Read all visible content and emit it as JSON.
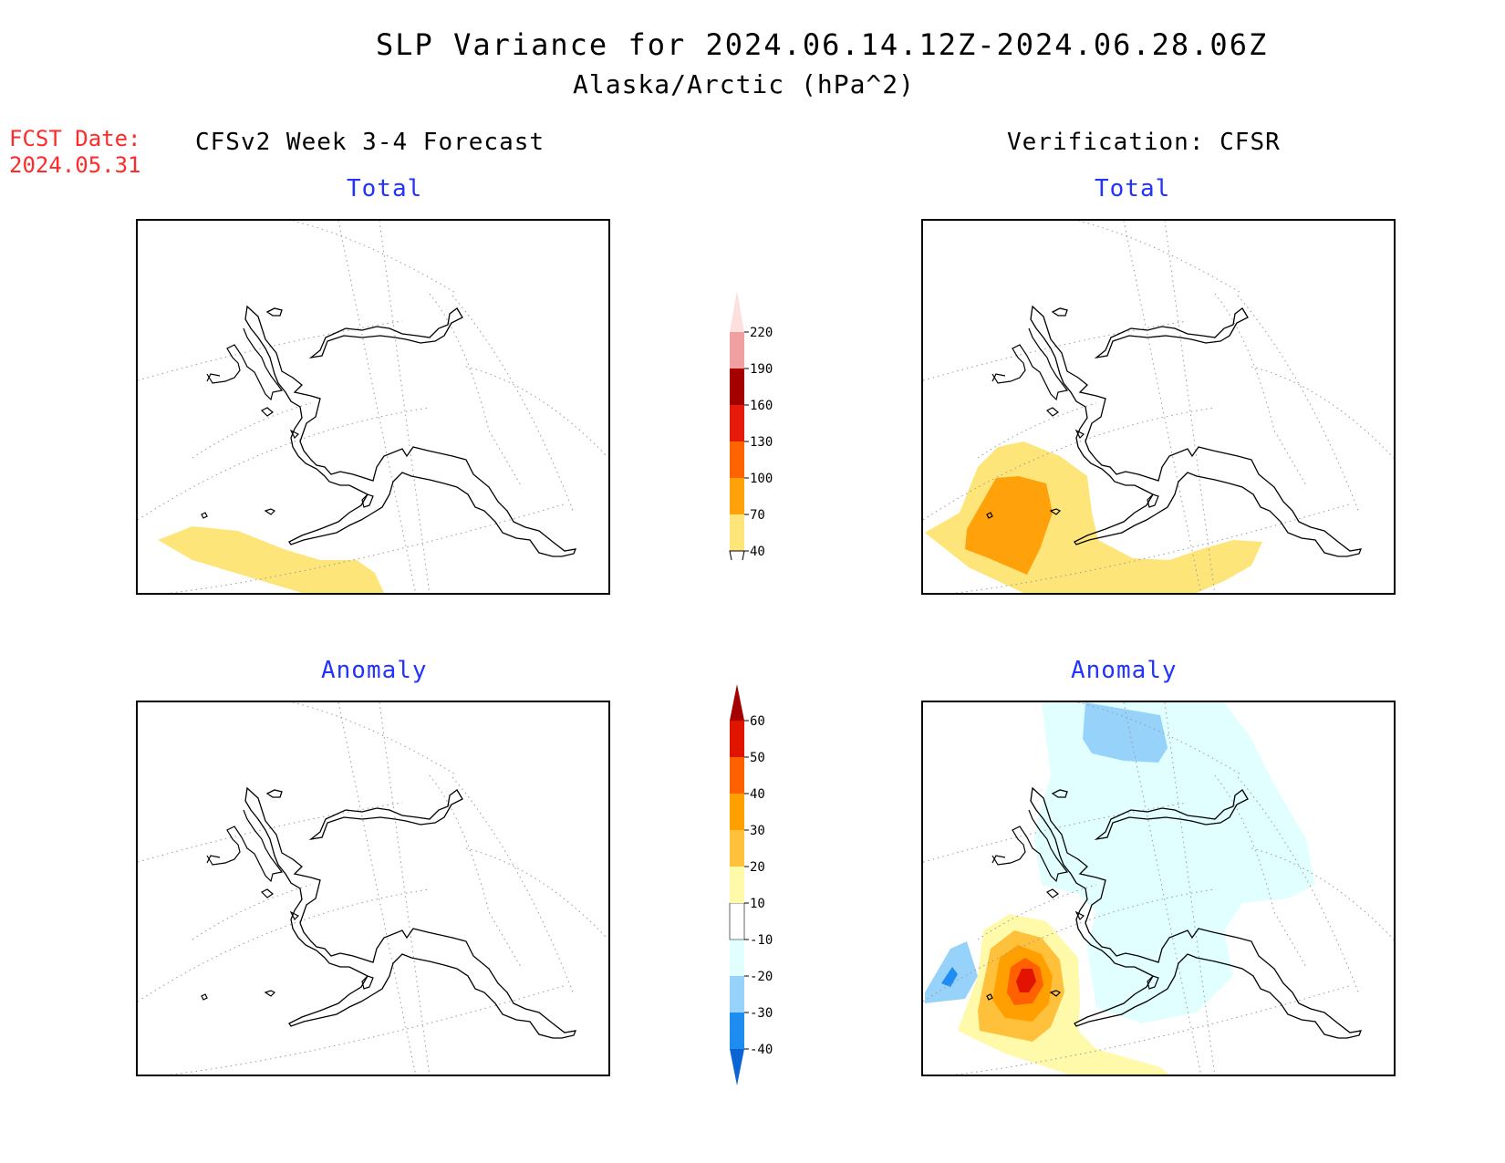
{
  "header": {
    "title": "SLP Variance for 2024.06.14.12Z-2024.06.28.06Z",
    "subtitle": "Alaska/Arctic (hPa^2)"
  },
  "fcst": {
    "label": "FCST Date:",
    "date": "2024.05.31"
  },
  "columns": {
    "left_title": "CFSv2 Week 3-4 Forecast",
    "right_title": "Verification: CFSR"
  },
  "panels": {
    "forecast_total_label": "Total",
    "forecast_anomaly_label": "Anomaly",
    "verification_total_label": "Total",
    "verification_anomaly_label": "Anomaly"
  },
  "colorbars": {
    "total": {
      "levels": [
        "40",
        "70",
        "100",
        "130",
        "160",
        "190",
        "220"
      ],
      "colors": [
        "#fde57a",
        "#ffa10a",
        "#ff6400",
        "#e61a0a",
        "#a50000",
        "#f0a0a0",
        "#fde0dd"
      ],
      "bottom_extend_color": "#ffffff"
    },
    "anomaly": {
      "levels": [
        "-40",
        "-30",
        "-20",
        "-10",
        "10",
        "20",
        "30",
        "40",
        "50",
        "60"
      ],
      "colors": [
        "#0a64d2",
        "#1e8cf0",
        "#96d2fa",
        "#e1ffff",
        "#ffffff",
        "#fffaaa",
        "#ffc03c",
        "#ffa000",
        "#ff6000",
        "#e11400",
        "#a50000"
      ]
    }
  }
}
